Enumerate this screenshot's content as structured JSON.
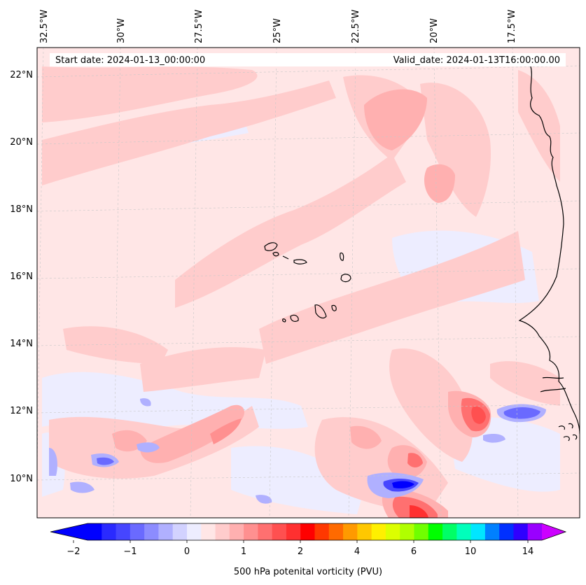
{
  "header": {
    "start_date": "Start date: 2024-01-13_00:00:00",
    "valid_date": "Valid_date: 2024-01-13T16:00:00.00"
  },
  "map": {
    "lon_labels": [
      "32.5°W",
      "30°W",
      "27.5°W",
      "25°W",
      "22.5°W",
      "20°W",
      "17.5°W"
    ],
    "lat_labels": [
      "22°N",
      "20°N",
      "18°N",
      "16°N",
      "14°N",
      "12°N",
      "10°N"
    ],
    "background_color": "#ffe6e6"
  },
  "colorbar": {
    "label": "500 hPa potenital vorticity (PVU)",
    "tick_labels": [
      "−2",
      "−1",
      "0",
      "1",
      "2",
      "4",
      "6",
      "10",
      "14"
    ],
    "colors": [
      "#0000ff",
      "#2a2aff",
      "#4646ff",
      "#6a6aff",
      "#8c8cff",
      "#b0b0ff",
      "#d2d2ff",
      "#ededff",
      "#ffe6e6",
      "#ffcccc",
      "#ffb0b0",
      "#ff9090",
      "#ff7070",
      "#ff5050",
      "#ff3030",
      "#ff0000",
      "#ff3800",
      "#ff6a00",
      "#ff9a00",
      "#ffc800",
      "#fff000",
      "#dcff00",
      "#b0ff00",
      "#70ff00",
      "#00ff00",
      "#00ff66",
      "#00ffbb",
      "#00e6ff",
      "#0080ff",
      "#0030ff",
      "#3000ff",
      "#9900ff"
    ],
    "under_color": "#0000ff",
    "over_color": "#cc00ff"
  }
}
